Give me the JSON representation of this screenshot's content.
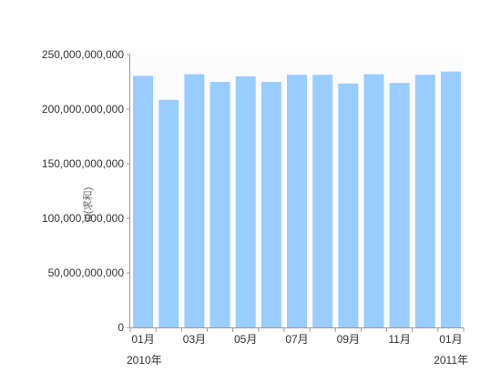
{
  "chart_data": {
    "type": "bar",
    "ylabel": "Id(求和)",
    "ylim": [
      0,
      250000000000
    ],
    "yticks": [
      "0",
      "50,000,000,000",
      "100,000,000,000",
      "150,000,000,000",
      "200,000,000,000",
      "250,000,000,000"
    ],
    "categories": [
      "2010-01",
      "2010-02",
      "2010-03",
      "2010-04",
      "2010-05",
      "2010-06",
      "2010-07",
      "2010-08",
      "2010-09",
      "2010-10",
      "2010-11",
      "2010-12",
      "2011-01"
    ],
    "month_labels": [
      "01月",
      "",
      "03月",
      "",
      "05月",
      "",
      "07月",
      "",
      "09月",
      "",
      "11月",
      "",
      "01月"
    ],
    "year_labels": [
      {
        "at_category": 0,
        "text": "2010年"
      },
      {
        "at_category": 12,
        "text": "2011年"
      }
    ],
    "values": [
      230500000000,
      208500000000,
      232000000000,
      225000000000,
      230000000000,
      225000000000,
      231500000000,
      231500000000,
      223500000000,
      232000000000,
      224000000000,
      231500000000,
      234500000000
    ],
    "bar_color": "#99ccff",
    "plot_background": "#fcfcfc",
    "axis_color": "#999999",
    "grid": false
  }
}
